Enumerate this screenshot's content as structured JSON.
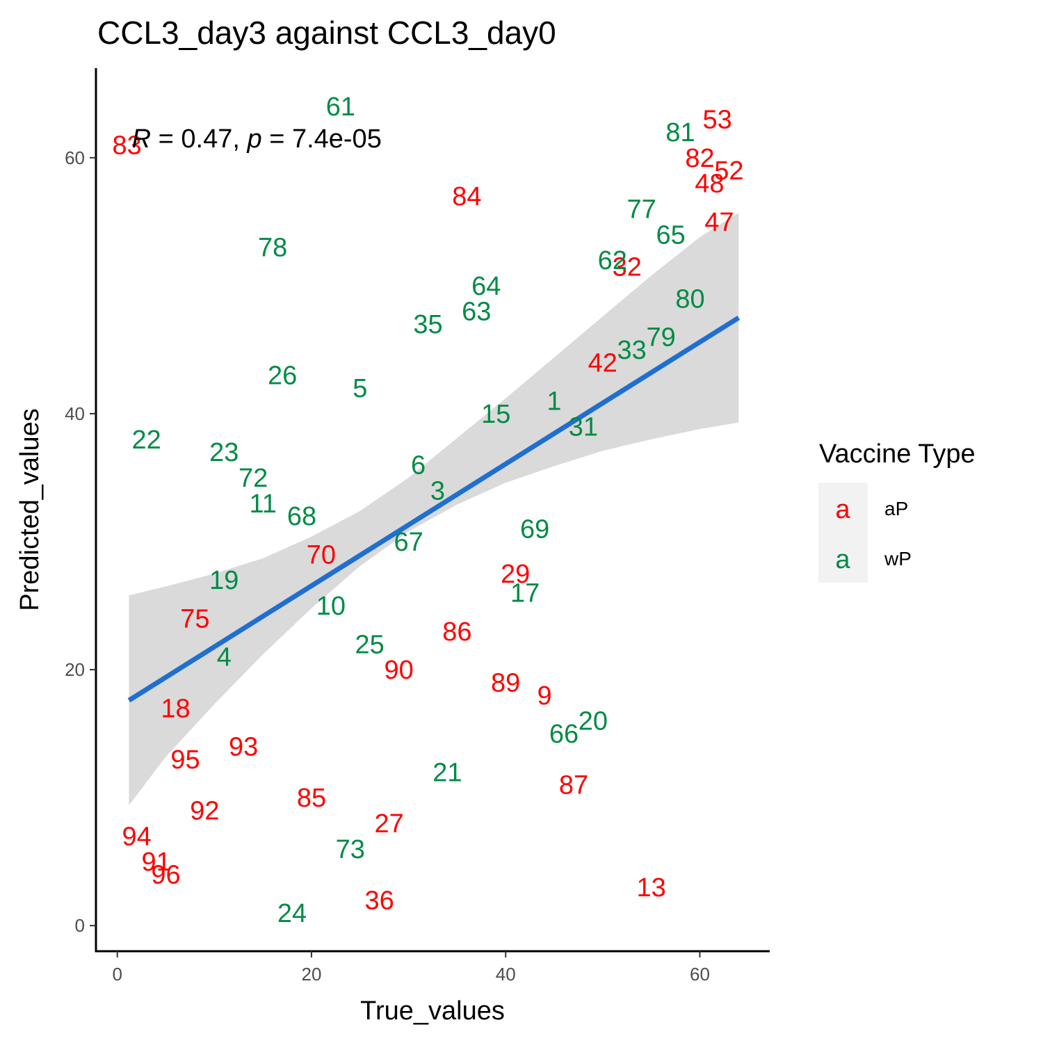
{
  "chart_data": {
    "type": "scatter",
    "title": "CCL3_day3 against CCL3_day0",
    "xlabel": "True_values",
    "ylabel": "Predicted_values",
    "xlim": [
      -2.2,
      67.2
    ],
    "ylim": [
      -2,
      67
    ],
    "xticks": [
      0,
      20,
      40,
      60
    ],
    "yticks": [
      0,
      20,
      40,
      60
    ],
    "grid": false,
    "annotation": {
      "r_label": "R",
      "r_text": " = 0.47, ",
      "p_label": "p",
      "p_text": " = 7.4e-05",
      "x": 1.5,
      "y": 61.5
    },
    "colors": {
      "aP": "#ff0000",
      "wP": "#008b45",
      "line": "#1f6fd1",
      "band": "#d6d6d6"
    },
    "legend": {
      "title": "Vaccine Type",
      "position": "right",
      "key_glyph": "a",
      "entries": [
        {
          "label": "aP",
          "color": "#ff0000"
        },
        {
          "label": "wP",
          "color": "#008b45"
        }
      ]
    },
    "fit": {
      "x": [
        1.2,
        64
      ],
      "y": [
        17.6,
        47.5
      ],
      "band": {
        "x": [
          1.2,
          5,
          10,
          15,
          20,
          25,
          30,
          35,
          40,
          45,
          50,
          55,
          60,
          64
        ],
        "lower": [
          9.4,
          13.2,
          17.3,
          21.2,
          24.8,
          28.1,
          30.8,
          32.9,
          34.6,
          35.9,
          37.1,
          38.0,
          38.8,
          39.3
        ],
        "upper": [
          25.8,
          26.5,
          27.5,
          28.7,
          30.4,
          32.4,
          35.0,
          38.1,
          41.2,
          44.4,
          47.6,
          50.8,
          53.8,
          55.7
        ]
      }
    },
    "series": [
      {
        "name": "aP",
        "points": [
          {
            "label": "83",
            "x": 1.0,
            "y": 61.0
          },
          {
            "label": "53",
            "x": 61.8,
            "y": 63.0
          },
          {
            "label": "82",
            "x": 60.0,
            "y": 60.0
          },
          {
            "label": "52",
            "x": 63.0,
            "y": 59.0
          },
          {
            "label": "48",
            "x": 61.0,
            "y": 58.0
          },
          {
            "label": "47",
            "x": 62.0,
            "y": 55.0
          },
          {
            "label": "84",
            "x": 36.0,
            "y": 57.0
          },
          {
            "label": "32",
            "x": 52.5,
            "y": 51.5
          },
          {
            "label": "42",
            "x": 50.0,
            "y": 44.0
          },
          {
            "label": "70",
            "x": 21.0,
            "y": 29.0
          },
          {
            "label": "29",
            "x": 41.0,
            "y": 27.5
          },
          {
            "label": "75",
            "x": 8.0,
            "y": 24.0
          },
          {
            "label": "86",
            "x": 35.0,
            "y": 23.0
          },
          {
            "label": "90",
            "x": 29.0,
            "y": 20.0
          },
          {
            "label": "89",
            "x": 40.0,
            "y": 19.0
          },
          {
            "label": "9",
            "x": 44.0,
            "y": 18.0
          },
          {
            "label": "18",
            "x": 6.0,
            "y": 17.0
          },
          {
            "label": "93",
            "x": 13.0,
            "y": 14.0
          },
          {
            "label": "95",
            "x": 7.0,
            "y": 13.0
          },
          {
            "label": "87",
            "x": 47.0,
            "y": 11.0
          },
          {
            "label": "85",
            "x": 20.0,
            "y": 10.0
          },
          {
            "label": "92",
            "x": 9.0,
            "y": 9.0
          },
          {
            "label": "27",
            "x": 28.0,
            "y": 8.0
          },
          {
            "label": "94",
            "x": 2.0,
            "y": 7.0
          },
          {
            "label": "91",
            "x": 4.0,
            "y": 5.0
          },
          {
            "label": "96",
            "x": 5.0,
            "y": 4.0
          },
          {
            "label": "13",
            "x": 55.0,
            "y": 3.0
          },
          {
            "label": "36",
            "x": 27.0,
            "y": 2.0
          }
        ]
      },
      {
        "name": "wP",
        "points": [
          {
            "label": "61",
            "x": 23.0,
            "y": 64.0
          },
          {
            "label": "81",
            "x": 58.0,
            "y": 62.0
          },
          {
            "label": "77",
            "x": 54.0,
            "y": 56.0
          },
          {
            "label": "65",
            "x": 57.0,
            "y": 54.0
          },
          {
            "label": "78",
            "x": 16.0,
            "y": 53.0
          },
          {
            "label": "62",
            "x": 51.0,
            "y": 52.0
          },
          {
            "label": "64",
            "x": 38.0,
            "y": 50.0
          },
          {
            "label": "80",
            "x": 59.0,
            "y": 49.0
          },
          {
            "label": "63",
            "x": 37.0,
            "y": 48.0
          },
          {
            "label": "35",
            "x": 32.0,
            "y": 47.0
          },
          {
            "label": "79",
            "x": 56.0,
            "y": 46.0
          },
          {
            "label": "33",
            "x": 53.0,
            "y": 45.0
          },
          {
            "label": "26",
            "x": 17.0,
            "y": 43.0
          },
          {
            "label": "5",
            "x": 25.0,
            "y": 42.0
          },
          {
            "label": "1",
            "x": 45.0,
            "y": 41.0
          },
          {
            "label": "15",
            "x": 39.0,
            "y": 40.0
          },
          {
            "label": "31",
            "x": 48.0,
            "y": 39.0
          },
          {
            "label": "22",
            "x": 3.0,
            "y": 38.0
          },
          {
            "label": "23",
            "x": 11.0,
            "y": 37.0
          },
          {
            "label": "6",
            "x": 31.0,
            "y": 36.0
          },
          {
            "label": "72",
            "x": 14.0,
            "y": 35.0
          },
          {
            "label": "3",
            "x": 33.0,
            "y": 34.0
          },
          {
            "label": "11",
            "x": 15.0,
            "y": 33.0
          },
          {
            "label": "68",
            "x": 19.0,
            "y": 32.0
          },
          {
            "label": "69",
            "x": 43.0,
            "y": 31.0
          },
          {
            "label": "67",
            "x": 30.0,
            "y": 30.0
          },
          {
            "label": "19",
            "x": 11.0,
            "y": 27.0
          },
          {
            "label": "17",
            "x": 42.0,
            "y": 26.0
          },
          {
            "label": "10",
            "x": 22.0,
            "y": 25.0
          },
          {
            "label": "25",
            "x": 26.0,
            "y": 22.0
          },
          {
            "label": "4",
            "x": 11.0,
            "y": 21.0
          },
          {
            "label": "20",
            "x": 49.0,
            "y": 16.0
          },
          {
            "label": "66",
            "x": 46.0,
            "y": 15.0
          },
          {
            "label": "21",
            "x": 34.0,
            "y": 12.0
          },
          {
            "label": "73",
            "x": 24.0,
            "y": 6.0
          },
          {
            "label": "24",
            "x": 18.0,
            "y": 1.0
          }
        ]
      }
    ]
  }
}
